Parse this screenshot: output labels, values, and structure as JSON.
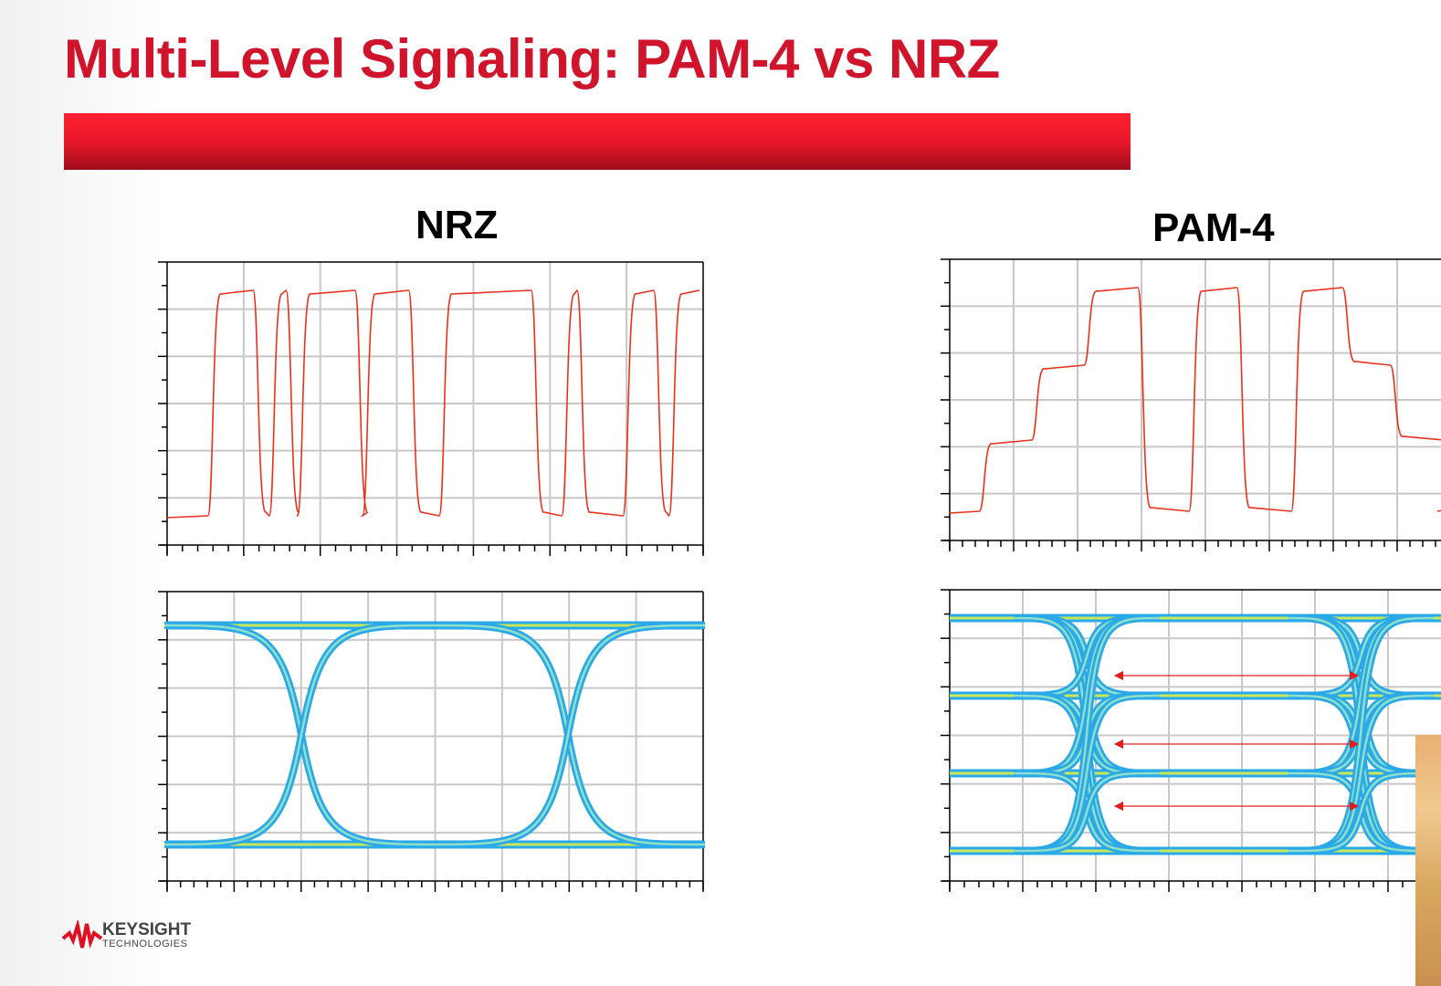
{
  "title": "Multi-Level Signaling: PAM-4 vs NRZ",
  "logo": {
    "name": "KEYSIGHT",
    "sub": "TECHNOLOGIES"
  },
  "colors": {
    "accent": "#d0142c",
    "waveform": "#e8321e",
    "eye": "#2aa8e8",
    "arrow": "#e02020"
  },
  "chart_data": [
    {
      "type": "line",
      "title": "NRZ",
      "subtitle": "waveform",
      "levels": 2,
      "xlim": [
        0,
        7
      ],
      "ylim": [
        0,
        6
      ],
      "segments": [
        [
          0,
          0
        ],
        [
          0.58,
          1
        ],
        [
          1.17,
          0
        ],
        [
          1.38,
          1
        ],
        [
          1.6,
          0
        ],
        [
          1.75,
          1
        ],
        [
          2.5,
          0
        ],
        [
          2.6,
          1
        ],
        [
          3.2,
          0
        ],
        [
          3.6,
          1
        ],
        [
          4.8,
          0
        ],
        [
          5.2,
          1
        ],
        [
          5.4,
          0
        ],
        [
          6.0,
          1
        ],
        [
          6.4,
          0
        ],
        [
          6.6,
          1
        ]
      ]
    },
    {
      "type": "line",
      "title": "PAM-4",
      "subtitle": "waveform",
      "levels": 4,
      "xlim": [
        0,
        8
      ],
      "ylim": [
        0,
        6
      ],
      "segments": [
        [
          0,
          0
        ],
        [
          0.52,
          1
        ],
        [
          1.34,
          2
        ],
        [
          2.16,
          3
        ],
        [
          3.0,
          0
        ],
        [
          3.8,
          3
        ],
        [
          4.55,
          0
        ],
        [
          5.4,
          3
        ],
        [
          6.2,
          2
        ],
        [
          6.95,
          1
        ],
        [
          7.8,
          0
        ]
      ]
    },
    {
      "type": "scatter",
      "title": "NRZ",
      "subtitle": "eye diagram",
      "levels": 2,
      "crossings": [
        2,
        6
      ],
      "xlim": [
        0,
        8
      ],
      "ylim": [
        0,
        6
      ]
    },
    {
      "type": "scatter",
      "title": "PAM-4",
      "subtitle": "eye diagram",
      "levels": 4,
      "crossings": [
        2,
        6
      ],
      "xlim": [
        0,
        7
      ],
      "ylim": [
        0,
        6
      ],
      "eye_openings": 3
    }
  ]
}
